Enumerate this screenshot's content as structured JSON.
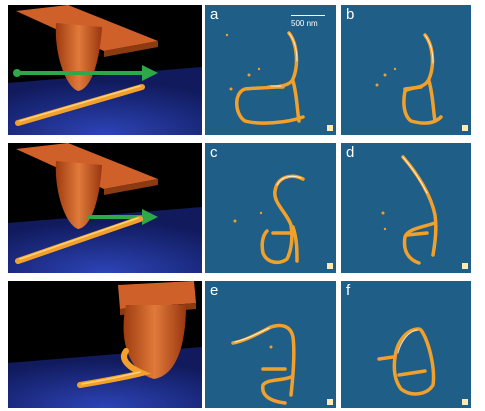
{
  "figure": {
    "panel_labels": [
      "a",
      "b",
      "c",
      "d",
      "e",
      "f"
    ],
    "scale_bar_label": "500 nm"
  },
  "colors": {
    "sample_background": "#1f5e86",
    "nanotube": "#f2a02c",
    "tip": "#d8662a",
    "arrow": "#2fa84a",
    "substrate": "#1d2f96",
    "scene_background": "#000000"
  }
}
